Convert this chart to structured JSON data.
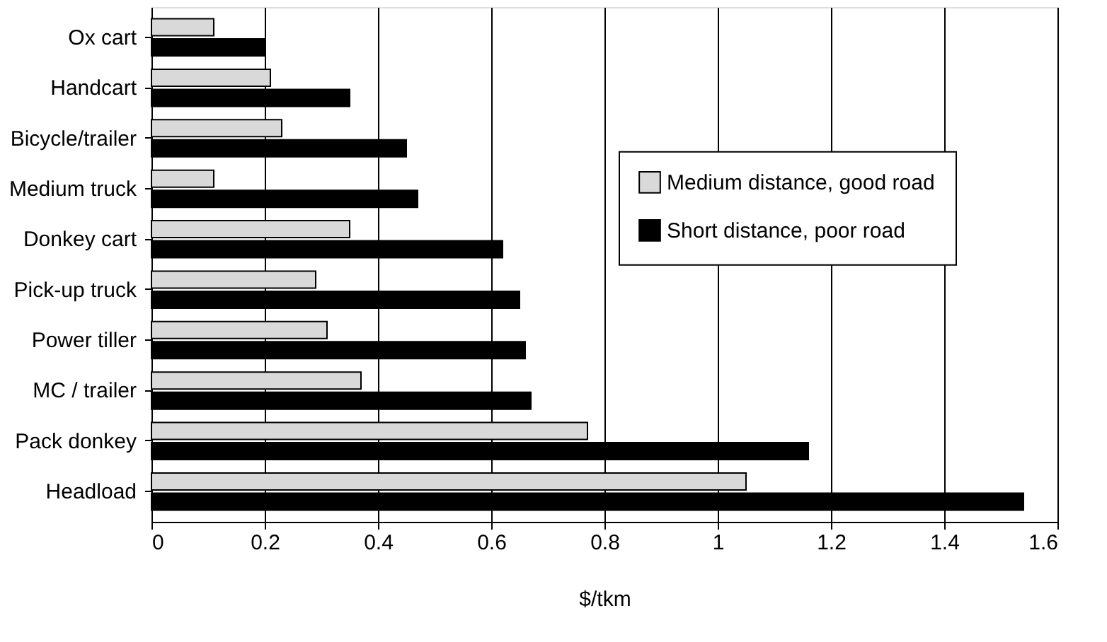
{
  "chart_data": {
    "type": "bar",
    "orientation": "horizontal",
    "xlabel": "$/tkm",
    "categories": [
      "Ox cart",
      "Handcart",
      "Bicycle/trailer",
      "Medium truck",
      "Donkey cart",
      "Pick-up truck",
      "Power tiller",
      "MC / trailer",
      "Pack donkey",
      "Headload"
    ],
    "series": [
      {
        "name": "Medium distance, good road",
        "color": "#d9d9d9",
        "values": [
          0.11,
          0.21,
          0.23,
          0.11,
          0.35,
          0.29,
          0.31,
          0.37,
          0.77,
          1.05
        ]
      },
      {
        "name": "Short distance, poor road",
        "color": "#000000",
        "values": [
          0.2,
          0.35,
          0.45,
          0.47,
          0.62,
          0.65,
          0.66,
          0.67,
          1.16,
          1.54
        ]
      }
    ],
    "xlim": [
      0,
      1.6
    ],
    "xticks": [
      0,
      0.2,
      0.4,
      0.6,
      0.8,
      1,
      1.2,
      1.4,
      1.6
    ],
    "grid": "x",
    "legend": "right"
  }
}
